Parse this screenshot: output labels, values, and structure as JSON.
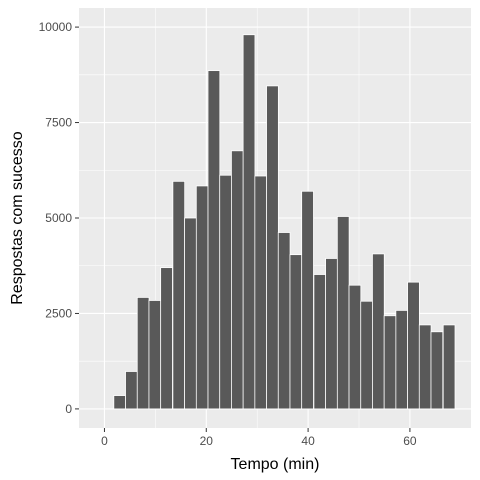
{
  "chart_data": {
    "type": "bar",
    "title": "",
    "xlabel": "Tempo (min)",
    "ylabel": "Respostas com sucesso",
    "bin_width": 2.32,
    "x": [
      3.0,
      5.3,
      7.6,
      9.9,
      12.2,
      14.6,
      16.9,
      19.2,
      21.5,
      23.8,
      26.1,
      28.4,
      30.7,
      33.0,
      35.3,
      37.6,
      39.9,
      42.3,
      44.6,
      46.9,
      49.2,
      51.5,
      53.8,
      56.1,
      58.4,
      60.7,
      63.0,
      65.3,
      67.7
    ],
    "values": [
      350,
      980,
      2920,
      2840,
      3700,
      5960,
      5000,
      5840,
      8860,
      6120,
      6760,
      9800,
      6100,
      8460,
      4620,
      4040,
      5700,
      3520,
      3940,
      5040,
      3240,
      2820,
      4060,
      2440,
      2580,
      3320,
      2200,
      2020,
      2200
    ],
    "xlim": [
      -5,
      72
    ],
    "ylim": [
      -500,
      10500
    ],
    "x_ticks": [
      0,
      20,
      40,
      60
    ],
    "x_tick_labels": [
      "0",
      "20",
      "40",
      "60"
    ],
    "y_ticks": [
      0,
      2500,
      5000,
      7500,
      10000
    ],
    "y_tick_labels": [
      "0",
      "2500",
      "5000",
      "7500",
      "10000"
    ],
    "grid": true,
    "colors": {
      "panel": "#ebebeb",
      "grid_major": "#ffffff",
      "bar_fill": "#595959",
      "bar_outline": "#ffffff",
      "tick_text": "#4d4d4d",
      "tick_mark": "#333333"
    }
  }
}
